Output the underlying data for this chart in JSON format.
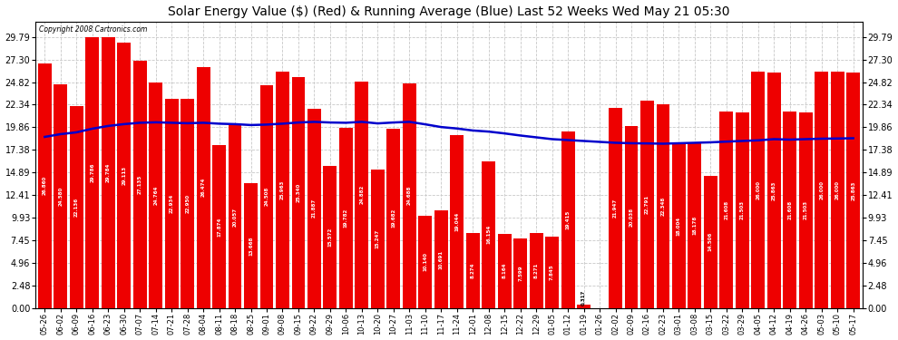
{
  "title": "Solar Energy Value ($) (Red) & Running Average (Blue) Last 52 Weeks Wed May 21 05:30",
  "copyright": "Copyright 2008 Cartronics.com",
  "bar_color": "#ee0000",
  "avg_line_color": "#0000cc",
  "background_color": "#ffffff",
  "grid_color": "#c8c8c8",
  "dates": [
    "05-26",
    "06-02",
    "06-09",
    "06-16",
    "06-23",
    "06-30",
    "07-07",
    "07-14",
    "07-21",
    "07-28",
    "08-04",
    "08-11",
    "08-18",
    "08-25",
    "09-01",
    "09-08",
    "09-15",
    "09-22",
    "09-29",
    "10-06",
    "10-13",
    "10-20",
    "10-27",
    "11-03",
    "11-10",
    "11-17",
    "11-24",
    "12-01",
    "12-08",
    "12-15",
    "12-22",
    "12-29",
    "01-05",
    "01-12",
    "01-19",
    "01-26",
    "02-02",
    "02-09",
    "02-16",
    "02-23",
    "03-01",
    "03-08",
    "03-15",
    "03-22",
    "03-29",
    "04-05",
    "04-12",
    "04-19",
    "04-26",
    "05-03",
    "05-10",
    "05-17"
  ],
  "values": [
    26.86,
    24.58,
    22.136,
    29.786,
    29.784,
    29.113,
    27.135,
    24.764,
    22.934,
    22.95,
    26.474,
    17.874,
    20.057,
    13.668,
    24.508,
    25.963,
    25.34,
    21.887,
    15.572,
    19.782,
    24.882,
    15.247,
    19.682,
    24.688,
    10.14,
    10.691,
    19.044,
    8.274,
    16.154,
    8.164,
    7.599,
    8.271,
    7.845,
    19.415,
    0.317,
    0.0,
    21.947,
    20.038,
    22.791,
    22.348,
    18.004,
    18.178,
    14.506,
    21.608,
    21.503,
    26.0,
    25.863,
    21.608,
    21.503,
    26.0,
    26.0,
    25.863
  ],
  "running_avg": [
    18.8,
    19.1,
    19.3,
    19.7,
    20.0,
    20.2,
    20.35,
    20.4,
    20.35,
    20.3,
    20.35,
    20.25,
    20.2,
    20.1,
    20.15,
    20.25,
    20.38,
    20.45,
    20.38,
    20.35,
    20.45,
    20.28,
    20.38,
    20.45,
    20.18,
    19.88,
    19.72,
    19.5,
    19.38,
    19.18,
    18.95,
    18.75,
    18.55,
    18.45,
    18.35,
    18.25,
    18.15,
    18.1,
    18.08,
    18.05,
    18.1,
    18.15,
    18.2,
    18.28,
    18.35,
    18.42,
    18.55,
    18.5,
    18.55,
    18.6,
    18.62,
    18.65
  ],
  "yticks": [
    0.0,
    2.48,
    4.96,
    7.45,
    9.93,
    12.41,
    14.89,
    17.38,
    19.86,
    22.34,
    24.82,
    27.3,
    29.79
  ],
  "ymax": 31.5,
  "ymin": 0.0
}
